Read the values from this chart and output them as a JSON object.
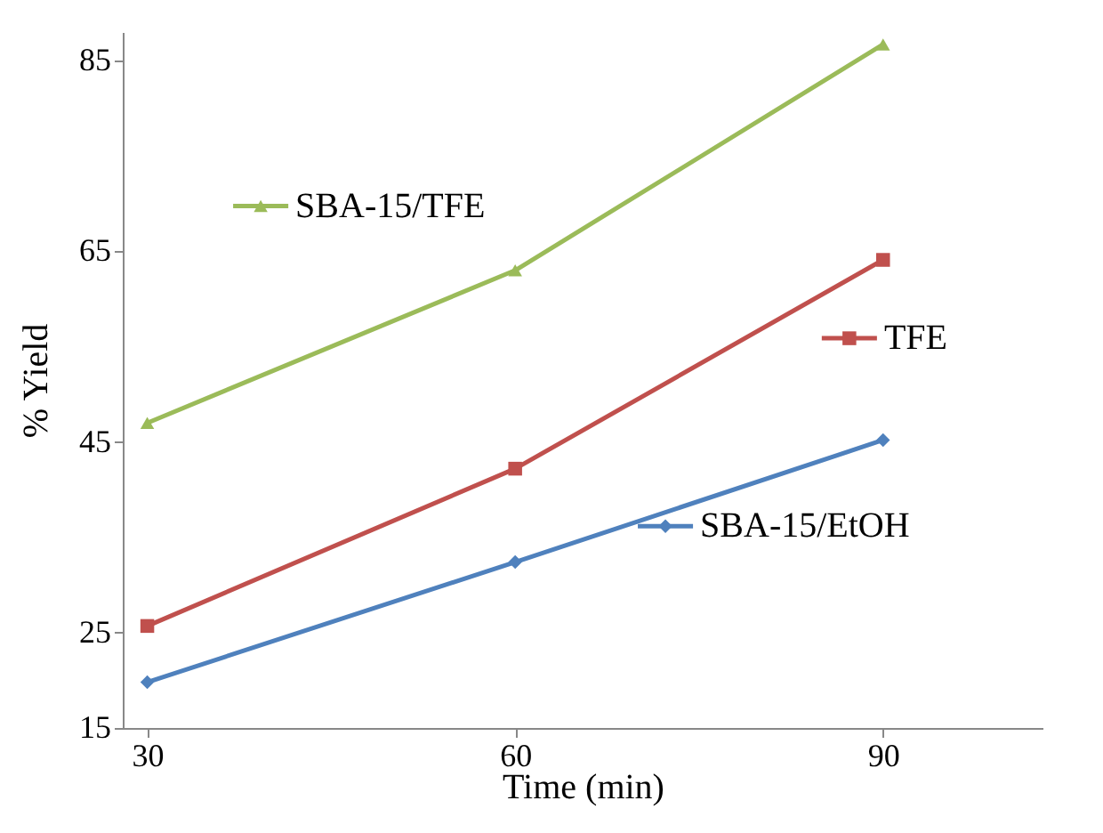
{
  "chart_data": {
    "type": "line",
    "xlabel": "Time (min)",
    "ylabel": "% Yield",
    "x": [
      30,
      60,
      90
    ],
    "xlim": [
      28,
      103
    ],
    "xticks": [
      30,
      60,
      90
    ],
    "ylim": [
      15,
      88
    ],
    "yticks": [
      15,
      25,
      45,
      65,
      85
    ],
    "grid": false,
    "legend": "right",
    "line_style": "solid",
    "series": [
      {
        "name": "SBA-15/TFE",
        "color": "#9bbb59",
        "marker": "triangle",
        "values": [
          47,
          63,
          86.7
        ]
      },
      {
        "name": "TFE",
        "color": "#c0504d",
        "marker": "square",
        "values": [
          25.7,
          42.2,
          64.1
        ]
      },
      {
        "name": "SBA-15/EtOH",
        "color": "#4f81bd",
        "marker": "diamond",
        "values": [
          19.8,
          32.4,
          45.2
        ]
      }
    ]
  }
}
